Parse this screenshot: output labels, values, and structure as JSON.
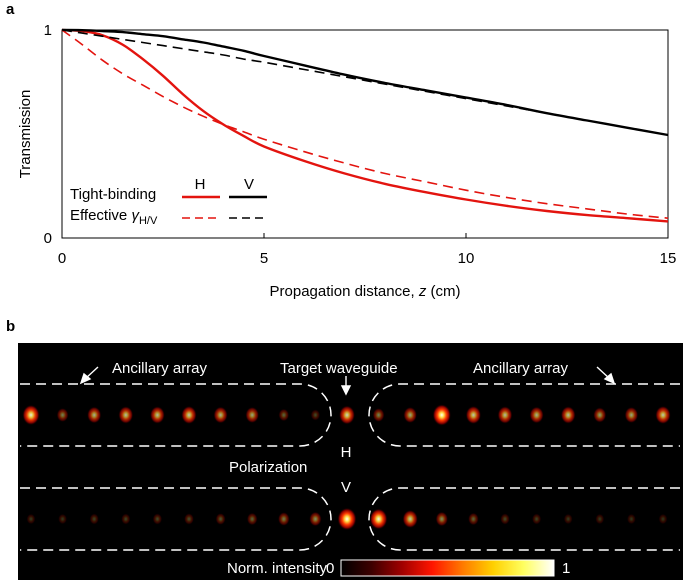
{
  "panel_a": {
    "label": "a",
    "legend": {
      "row1_label": "Tight-binding",
      "row2_label": "Effective",
      "row2_symbol": "γ",
      "row2_subscript": "H/V",
      "col_h": "H",
      "col_v": "V"
    }
  },
  "panel_b": {
    "label": "b",
    "ancillary_left": "Ancillary array",
    "ancillary_right": "Ancillary array",
    "target": "Target waveguide",
    "polarization": "Polarization",
    "h_label": "H",
    "v_label": "V",
    "colorbar": {
      "title": "Norm. intensity",
      "min": "0",
      "max": "1",
      "stops": [
        "#000000",
        "#3d0000",
        "#a00000",
        "#ff1500",
        "#ff7a00",
        "#ffd000",
        "#ffff60",
        "#ffffff"
      ]
    },
    "h_row_intensity": [
      0.75,
      0.3,
      0.5,
      0.55,
      0.55,
      0.6,
      0.5,
      0.45,
      0.2,
      0.1,
      0.65,
      0.3,
      0.45,
      0.85,
      0.6,
      0.55,
      0.5,
      0.55,
      0.4,
      0.45,
      0.6
    ],
    "v_row_intensity": [
      0.05,
      0.05,
      0.08,
      0.08,
      0.1,
      0.12,
      0.15,
      0.2,
      0.28,
      0.35,
      0.92,
      0.8,
      0.6,
      0.35,
      0.2,
      0.1,
      0.08,
      0.05,
      0.05,
      0.04,
      0.04
    ]
  },
  "chart_data": {
    "type": "line",
    "title": "",
    "xlabel": "Propagation distance, z (cm)",
    "xlabel_prefix": "Propagation distance, ",
    "xlabel_var": "z",
    "xlabel_suffix": " (cm)",
    "ylabel": "Transmission",
    "xlim": [
      0,
      15
    ],
    "ylim": [
      0,
      1
    ],
    "x_ticks": [
      0,
      5,
      10,
      15
    ],
    "y_ticks": [
      0,
      1
    ],
    "grid": false,
    "legend_position": "bottom-left",
    "x": [
      0,
      0.5,
      1,
      1.5,
      2,
      2.5,
      3,
      3.5,
      4,
      4.5,
      5,
      6,
      7,
      8,
      9,
      10,
      11,
      12,
      13,
      14,
      15
    ],
    "series": [
      {
        "name": "H",
        "model": "Tight-binding",
        "color": "#e3140f",
        "dash": "solid",
        "values": [
          1.0,
          0.995,
          0.975,
          0.93,
          0.86,
          0.78,
          0.69,
          0.61,
          0.545,
          0.49,
          0.44,
          0.37,
          0.31,
          0.26,
          0.22,
          0.185,
          0.155,
          0.13,
          0.11,
          0.095,
          0.08
        ]
      },
      {
        "name": "V",
        "model": "Tight-binding",
        "color": "#000000",
        "dash": "solid",
        "values": [
          1.0,
          0.999,
          0.995,
          0.99,
          0.98,
          0.97,
          0.955,
          0.94,
          0.92,
          0.9,
          0.875,
          0.83,
          0.785,
          0.745,
          0.71,
          0.675,
          0.64,
          0.6,
          0.565,
          0.53,
          0.495
        ]
      },
      {
        "name": "H",
        "model": "Effective γH/V",
        "color": "#e3140f",
        "dash": "dashed",
        "values": [
          1.0,
          0.93,
          0.855,
          0.79,
          0.735,
          0.68,
          0.63,
          0.585,
          0.545,
          0.51,
          0.475,
          0.415,
          0.36,
          0.31,
          0.27,
          0.23,
          0.195,
          0.165,
          0.14,
          0.115,
          0.095
        ]
      },
      {
        "name": "V",
        "model": "Effective γH/V",
        "color": "#000000",
        "dash": "dashed",
        "values": [
          1.0,
          0.985,
          0.97,
          0.955,
          0.94,
          0.925,
          0.91,
          0.895,
          0.88,
          0.86,
          0.845,
          0.81,
          0.775,
          0.74,
          0.705,
          0.67,
          0.635,
          0.6,
          0.565,
          0.53,
          0.495
        ]
      }
    ]
  }
}
